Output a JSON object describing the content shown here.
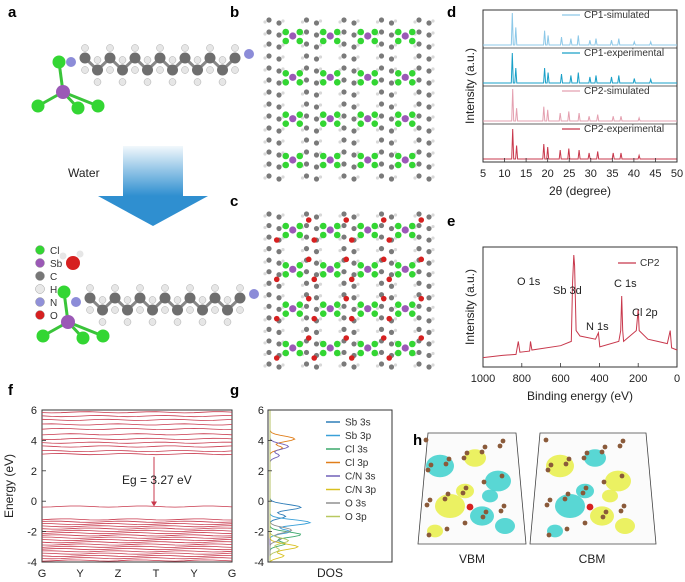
{
  "panel_labels": [
    "a",
    "b",
    "c",
    "d",
    "e",
    "f",
    "g",
    "h"
  ],
  "panel_a": {
    "arrow_label": "Water",
    "legend": [
      {
        "label": "Cl",
        "color": "#33d633"
      },
      {
        "label": "Sb",
        "color": "#9b59b6"
      },
      {
        "label": "C",
        "color": "#777777"
      },
      {
        "label": "H",
        "color": "#e8e8e8"
      },
      {
        "label": "N",
        "color": "#9090d8"
      },
      {
        "label": "O",
        "color": "#d62020"
      }
    ]
  },
  "panel_h": {
    "labels": [
      "VBM",
      "CBM"
    ]
  },
  "chart_data": [
    {
      "id": "d",
      "type": "line",
      "title": "",
      "xlabel": "2θ (degree)",
      "ylabel": "Intensity (a.u.)",
      "xlim": [
        5,
        50
      ],
      "xticks": [
        5,
        10,
        15,
        20,
        25,
        30,
        35,
        40,
        45,
        50
      ],
      "series": [
        {
          "name": "CP1-simulated",
          "color": "#8cc8e8",
          "peaks": [
            [
              11.8,
              1.0
            ],
            [
              12.6,
              0.55
            ],
            [
              19.3,
              0.45
            ],
            [
              20.1,
              0.3
            ],
            [
              23.2,
              0.25
            ],
            [
              25.4,
              0.2
            ],
            [
              27.1,
              0.3
            ],
            [
              29.8,
              0.15
            ],
            [
              31.2,
              0.2
            ],
            [
              34.8,
              0.15
            ],
            [
              36.5,
              0.2
            ],
            [
              40.1,
              0.1
            ],
            [
              43.9,
              0.1
            ]
          ]
        },
        {
          "name": "CP1-experimental",
          "color": "#1aa0c8",
          "peaks": [
            [
              11.8,
              1.0
            ],
            [
              12.6,
              0.5
            ],
            [
              19.3,
              0.5
            ],
            [
              20.1,
              0.35
            ],
            [
              23.2,
              0.3
            ],
            [
              25.4,
              0.25
            ],
            [
              27.1,
              0.35
            ],
            [
              29.8,
              0.2
            ],
            [
              31.2,
              0.25
            ],
            [
              34.8,
              0.2
            ],
            [
              36.5,
              0.25
            ],
            [
              40.1,
              0.15
            ],
            [
              43.9,
              0.12
            ]
          ]
        },
        {
          "name": "CP2-simulated",
          "color": "#e4a0b0",
          "peaks": [
            [
              11.9,
              1.0
            ],
            [
              12.8,
              0.4
            ],
            [
              19.1,
              0.45
            ],
            [
              20.0,
              0.35
            ],
            [
              22.9,
              0.25
            ],
            [
              24.9,
              0.3
            ],
            [
              27.3,
              0.25
            ],
            [
              29.6,
              0.15
            ],
            [
              31.6,
              0.2
            ],
            [
              35.2,
              0.15
            ],
            [
              37.0,
              0.15
            ],
            [
              41.2,
              0.1
            ]
          ]
        },
        {
          "name": "CP2-experimental",
          "color": "#c8384c",
          "peaks": [
            [
              11.9,
              1.0
            ],
            [
              12.8,
              0.45
            ],
            [
              19.1,
              0.5
            ],
            [
              20.0,
              0.4
            ],
            [
              22.9,
              0.3
            ],
            [
              24.9,
              0.35
            ],
            [
              27.3,
              0.3
            ],
            [
              29.6,
              0.2
            ],
            [
              31.6,
              0.25
            ],
            [
              35.2,
              0.2
            ],
            [
              37.0,
              0.2
            ],
            [
              41.2,
              0.12
            ]
          ]
        }
      ]
    },
    {
      "id": "e",
      "type": "line",
      "title": "",
      "xlabel": "Binding energy (eV)",
      "ylabel": "Intensity (a.u.)",
      "xlim": [
        1000,
        0
      ],
      "xticks": [
        1000,
        800,
        600,
        400,
        200,
        0
      ],
      "ylim": [
        0,
        1
      ],
      "series": [
        {
          "name": "CP2",
          "color": "#c8384c",
          "points": [
            [
              1000,
              0.05
            ],
            [
              900,
              0.07
            ],
            [
              830,
              0.08
            ],
            [
              818,
              0.2
            ],
            [
              810,
              0.1
            ],
            [
              760,
              0.11
            ],
            [
              755,
              0.2
            ],
            [
              748,
              0.12
            ],
            [
              600,
              0.16
            ],
            [
              545,
              0.2
            ],
            [
              538,
              0.75
            ],
            [
              532,
              1.0
            ],
            [
              528,
              0.9
            ],
            [
              520,
              0.3
            ],
            [
              500,
              0.25
            ],
            [
              420,
              0.22
            ],
            [
              405,
              0.28
            ],
            [
              398,
              0.15
            ],
            [
              300,
              0.2
            ],
            [
              290,
              0.3
            ],
            [
              285,
              0.62
            ],
            [
              280,
              0.3
            ],
            [
              275,
              0.2
            ],
            [
              210,
              0.3
            ],
            [
              200,
              0.5
            ],
            [
              195,
              0.3
            ],
            [
              150,
              0.22
            ],
            [
              100,
              0.2
            ],
            [
              50,
              0.18
            ],
            [
              35,
              0.3
            ],
            [
              28,
              0.14
            ],
            [
              0,
              0.12
            ]
          ]
        }
      ],
      "annotations": [
        "O 1s",
        "Sb 3d",
        "N 1s",
        "C 1s",
        "Cl 2p"
      ]
    },
    {
      "id": "f",
      "type": "line",
      "title": "",
      "xlabel": "",
      "ylabel": "Energy (eV)",
      "ylim": [
        -4,
        6
      ],
      "yticks": [
        -4,
        -2,
        0,
        2,
        4,
        6
      ],
      "xtick_labels": [
        "G",
        "Y",
        "Z",
        "T",
        "Y",
        "G"
      ],
      "bandgap_label": "Eg = 3.27 eV",
      "vbm": -0.35,
      "cbm": 2.92,
      "conduction_bands": [
        3.1,
        3.3,
        3.6,
        3.85,
        4.1,
        4.4,
        4.75,
        5.05,
        5.35,
        5.6,
        5.85
      ],
      "valence_bands": [
        -0.35,
        -1.2,
        -1.35,
        -1.5,
        -1.65,
        -1.8,
        -1.95,
        -2.1,
        -2.25,
        -2.4,
        -2.55,
        -2.7,
        -2.85,
        -3.0,
        -3.15,
        -3.3,
        -3.45,
        -3.6,
        -3.75,
        -3.9
      ],
      "color": "#c8384c"
    },
    {
      "id": "g",
      "type": "line",
      "title": "",
      "xlabel": "DOS",
      "ylabel": "",
      "ylim": [
        -4,
        6
      ],
      "yticks": [
        -4,
        -2,
        0,
        2,
        4,
        6
      ],
      "series": [
        {
          "name": "Sb 3s",
          "color": "#2e7db8"
        },
        {
          "name": "Sb 3p",
          "color": "#3aa0d8"
        },
        {
          "name": "Cl 3s",
          "color": "#3aa86a"
        },
        {
          "name": "Cl 3p",
          "color": "#e07e1a"
        },
        {
          "name": "C/N 3s",
          "color": "#7060b8"
        },
        {
          "name": "C/N 3p",
          "color": "#d8c020"
        },
        {
          "name": "O 3s",
          "color": "#909090"
        },
        {
          "name": "O 3p",
          "color": "#b8c860"
        }
      ]
    }
  ]
}
